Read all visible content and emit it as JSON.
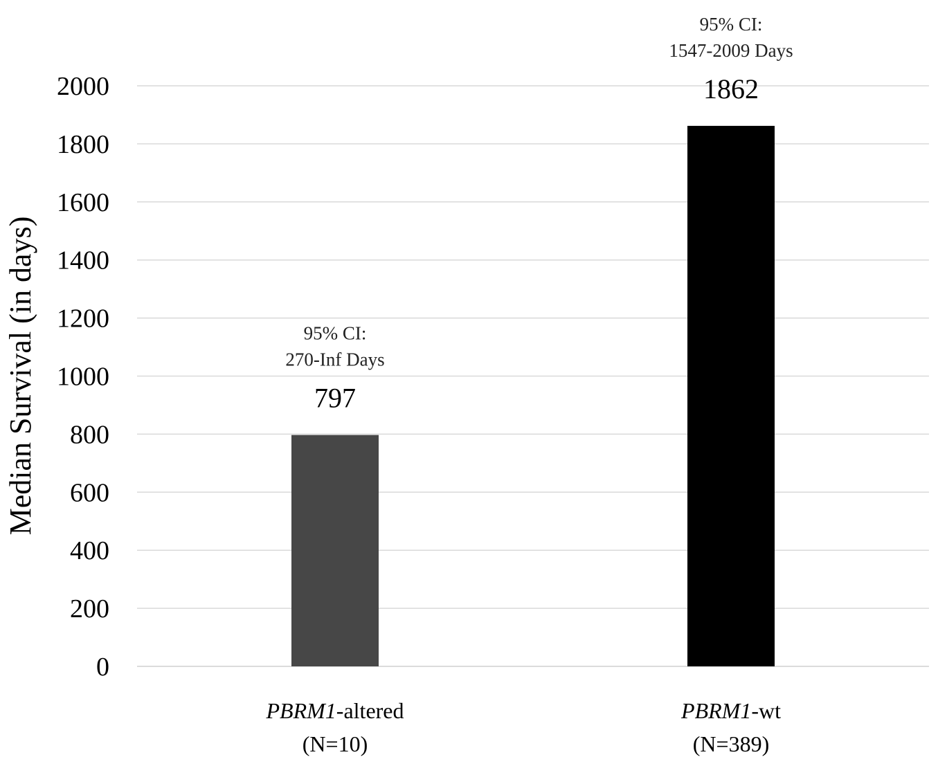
{
  "chart_data": {
    "type": "bar",
    "ylabel": "Median Survival (in days)",
    "ylim": [
      0,
      2000
    ],
    "yticks": [
      0,
      200,
      400,
      600,
      800,
      1000,
      1200,
      1400,
      1600,
      1800,
      2000
    ],
    "grid": true,
    "categories": [
      {
        "name": "PBRM1",
        "suffix": "-altered",
        "n": "(N=10)"
      },
      {
        "name": "PBRM1",
        "suffix": "-wt",
        "n": "(N=389)"
      }
    ],
    "values": [
      797,
      1862
    ],
    "data_labels": [
      "797",
      "1862"
    ],
    "ci_labels": [
      [
        "95% CI:",
        "270-Inf Days"
      ],
      [
        "95% CI:",
        "1547-2009 Days"
      ]
    ],
    "colors": [
      "#474747",
      "#000000"
    ]
  }
}
